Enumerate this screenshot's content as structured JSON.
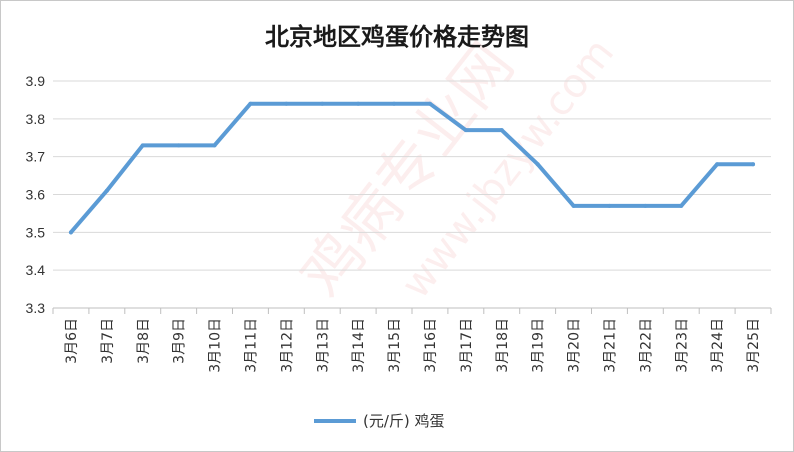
{
  "chart_data": {
    "type": "line",
    "title": "北京地区鸡蛋价格走势图",
    "categories": [
      "3月6日",
      "3月7日",
      "3月8日",
      "3月9日",
      "3月10日",
      "3月11日",
      "3月12日",
      "3月13日",
      "3月14日",
      "3月15日",
      "3月16日",
      "3月17日",
      "3月18日",
      "3月19日",
      "3月20日",
      "3月21日",
      "3月22日",
      "3月23日",
      "3月24日",
      "3月25日"
    ],
    "series": [
      {
        "name": "(元/斤) 鸡蛋",
        "values": [
          3.5,
          3.61,
          3.73,
          3.73,
          3.73,
          3.84,
          3.84,
          3.84,
          3.84,
          3.84,
          3.84,
          3.77,
          3.77,
          3.68,
          3.57,
          3.57,
          3.57,
          3.57,
          3.68,
          3.68
        ]
      }
    ],
    "yticks": [
      "3.3",
      "3.4",
      "3.5",
      "3.6",
      "3.7",
      "3.8",
      "3.9"
    ],
    "ylim": [
      3.3,
      3.9
    ],
    "grid": true,
    "legend_position": "bottom",
    "colors": {
      "line": "#5b9bd5",
      "grid": "#d9d9d9",
      "axis": "#bfbfbf"
    }
  },
  "watermark": {
    "lines": [
      "鸡病专业网",
      "www.jbzyw.com"
    ]
  }
}
